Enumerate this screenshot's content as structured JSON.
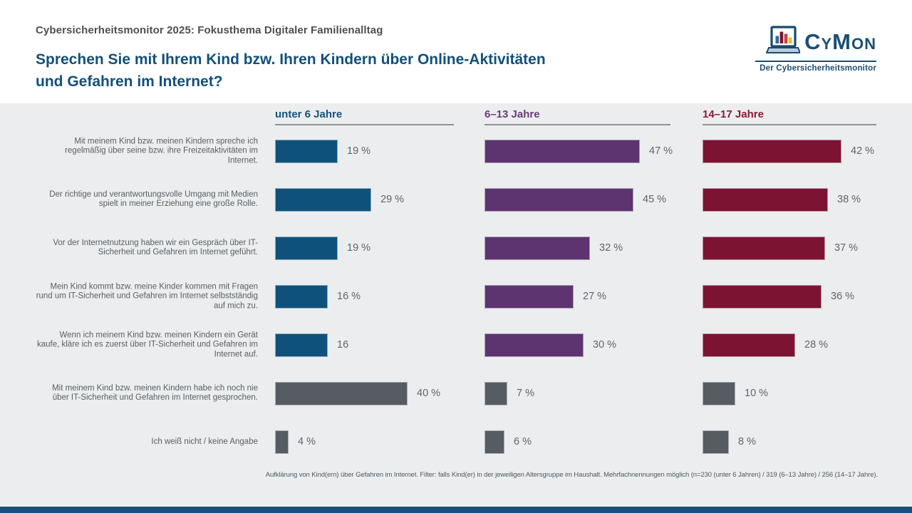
{
  "header": {
    "kicker": "Cybersicherheitsmonitor 2025: Fokusthema Digitaler Familienalltag",
    "title": "Sprechen Sie mit Ihrem Kind bzw. Ihren Kindern über Online-Aktivitäten und Gefahren im Internet?"
  },
  "logo": {
    "brand": "CyMon",
    "subtitle": "Der Cybersicherheitsmonitor",
    "laptop_icon_bar_colors": [
      "#2a6b9c",
      "#7b1230",
      "#c8403a",
      "#edbb2a"
    ],
    "brand_color": "#1d4e75"
  },
  "chart_data": {
    "type": "bar",
    "orientation": "horizontal",
    "unit": "%",
    "xlim": [
      0,
      54
    ],
    "categories": [
      "Mit meinem Kind bzw. meinen Kindern spreche ich regelmäßig über seine bzw. ihre Freizeitaktivitäten im Internet.",
      "Der richtige und verantwortungsvolle Umgang mit Medien spielt in meiner Erziehung eine große Rolle.",
      "Vor der Internetnutzung haben wir ein Gespräch über IT-Sicherheit und Gefahren im Internet geführt.",
      "Mein Kind kommt bzw. meine Kinder kommen mit Fragen rund um IT-Sicherheit und Gefahren im Internet selbstständig auf mich zu.",
      "Wenn ich meinem Kind bzw. meinen Kindern ein Gerät kaufe, kläre ich es zuerst über IT-Sicherheit und Gefahren im Internet auf.",
      "Mit meinem Kind bzw. meinen Kindern habe ich noch nie über IT-Sicherheit und Gefahren im Internet gesprochen.",
      "Ich weiß nicht / keine Angabe"
    ],
    "series": [
      {
        "name": "unter 6 Jahre",
        "color": "#0e527c",
        "header_color": "#15537c",
        "n": 230,
        "values": [
          19,
          29,
          19,
          16,
          16,
          40,
          4
        ],
        "labels": [
          "19 %",
          "29 %",
          "19 %",
          "16 %",
          "16",
          "40 %",
          "4 %"
        ]
      },
      {
        "name": "6–13 Jahre",
        "color": "#5d3370",
        "header_color": "#6b3b79",
        "n": 319,
        "values": [
          47,
          45,
          32,
          27,
          30,
          7,
          6
        ],
        "labels": [
          "47 %",
          "45 %",
          "32 %",
          "27 %",
          "30 %",
          "7 %",
          "6 %"
        ]
      },
      {
        "name": "14–17 Jahre",
        "color": "#7d1332",
        "header_color": "#8c1839",
        "n": 256,
        "values": [
          42,
          38,
          37,
          36,
          28,
          10,
          8
        ],
        "labels": [
          "42 %",
          "38 %",
          "37 %",
          "36 %",
          "28 %",
          "10 %",
          "8 %"
        ]
      }
    ],
    "neutral_color": "#565c61",
    "neutral_category_indexes": [
      5,
      6
    ],
    "legend_position": "column headers",
    "grid": false,
    "footnote": "Aufklärung von Kind(ern) über Gefahren im Internet. Filter: falls Kind(er) in der jeweiligen Altersgruppe im Haushalt. Mehrfachnennungen möglich (n=230 (unter 6 Jahren) / 319 (6–13 Jahre) / 256 (14–17 Jahre)."
  }
}
